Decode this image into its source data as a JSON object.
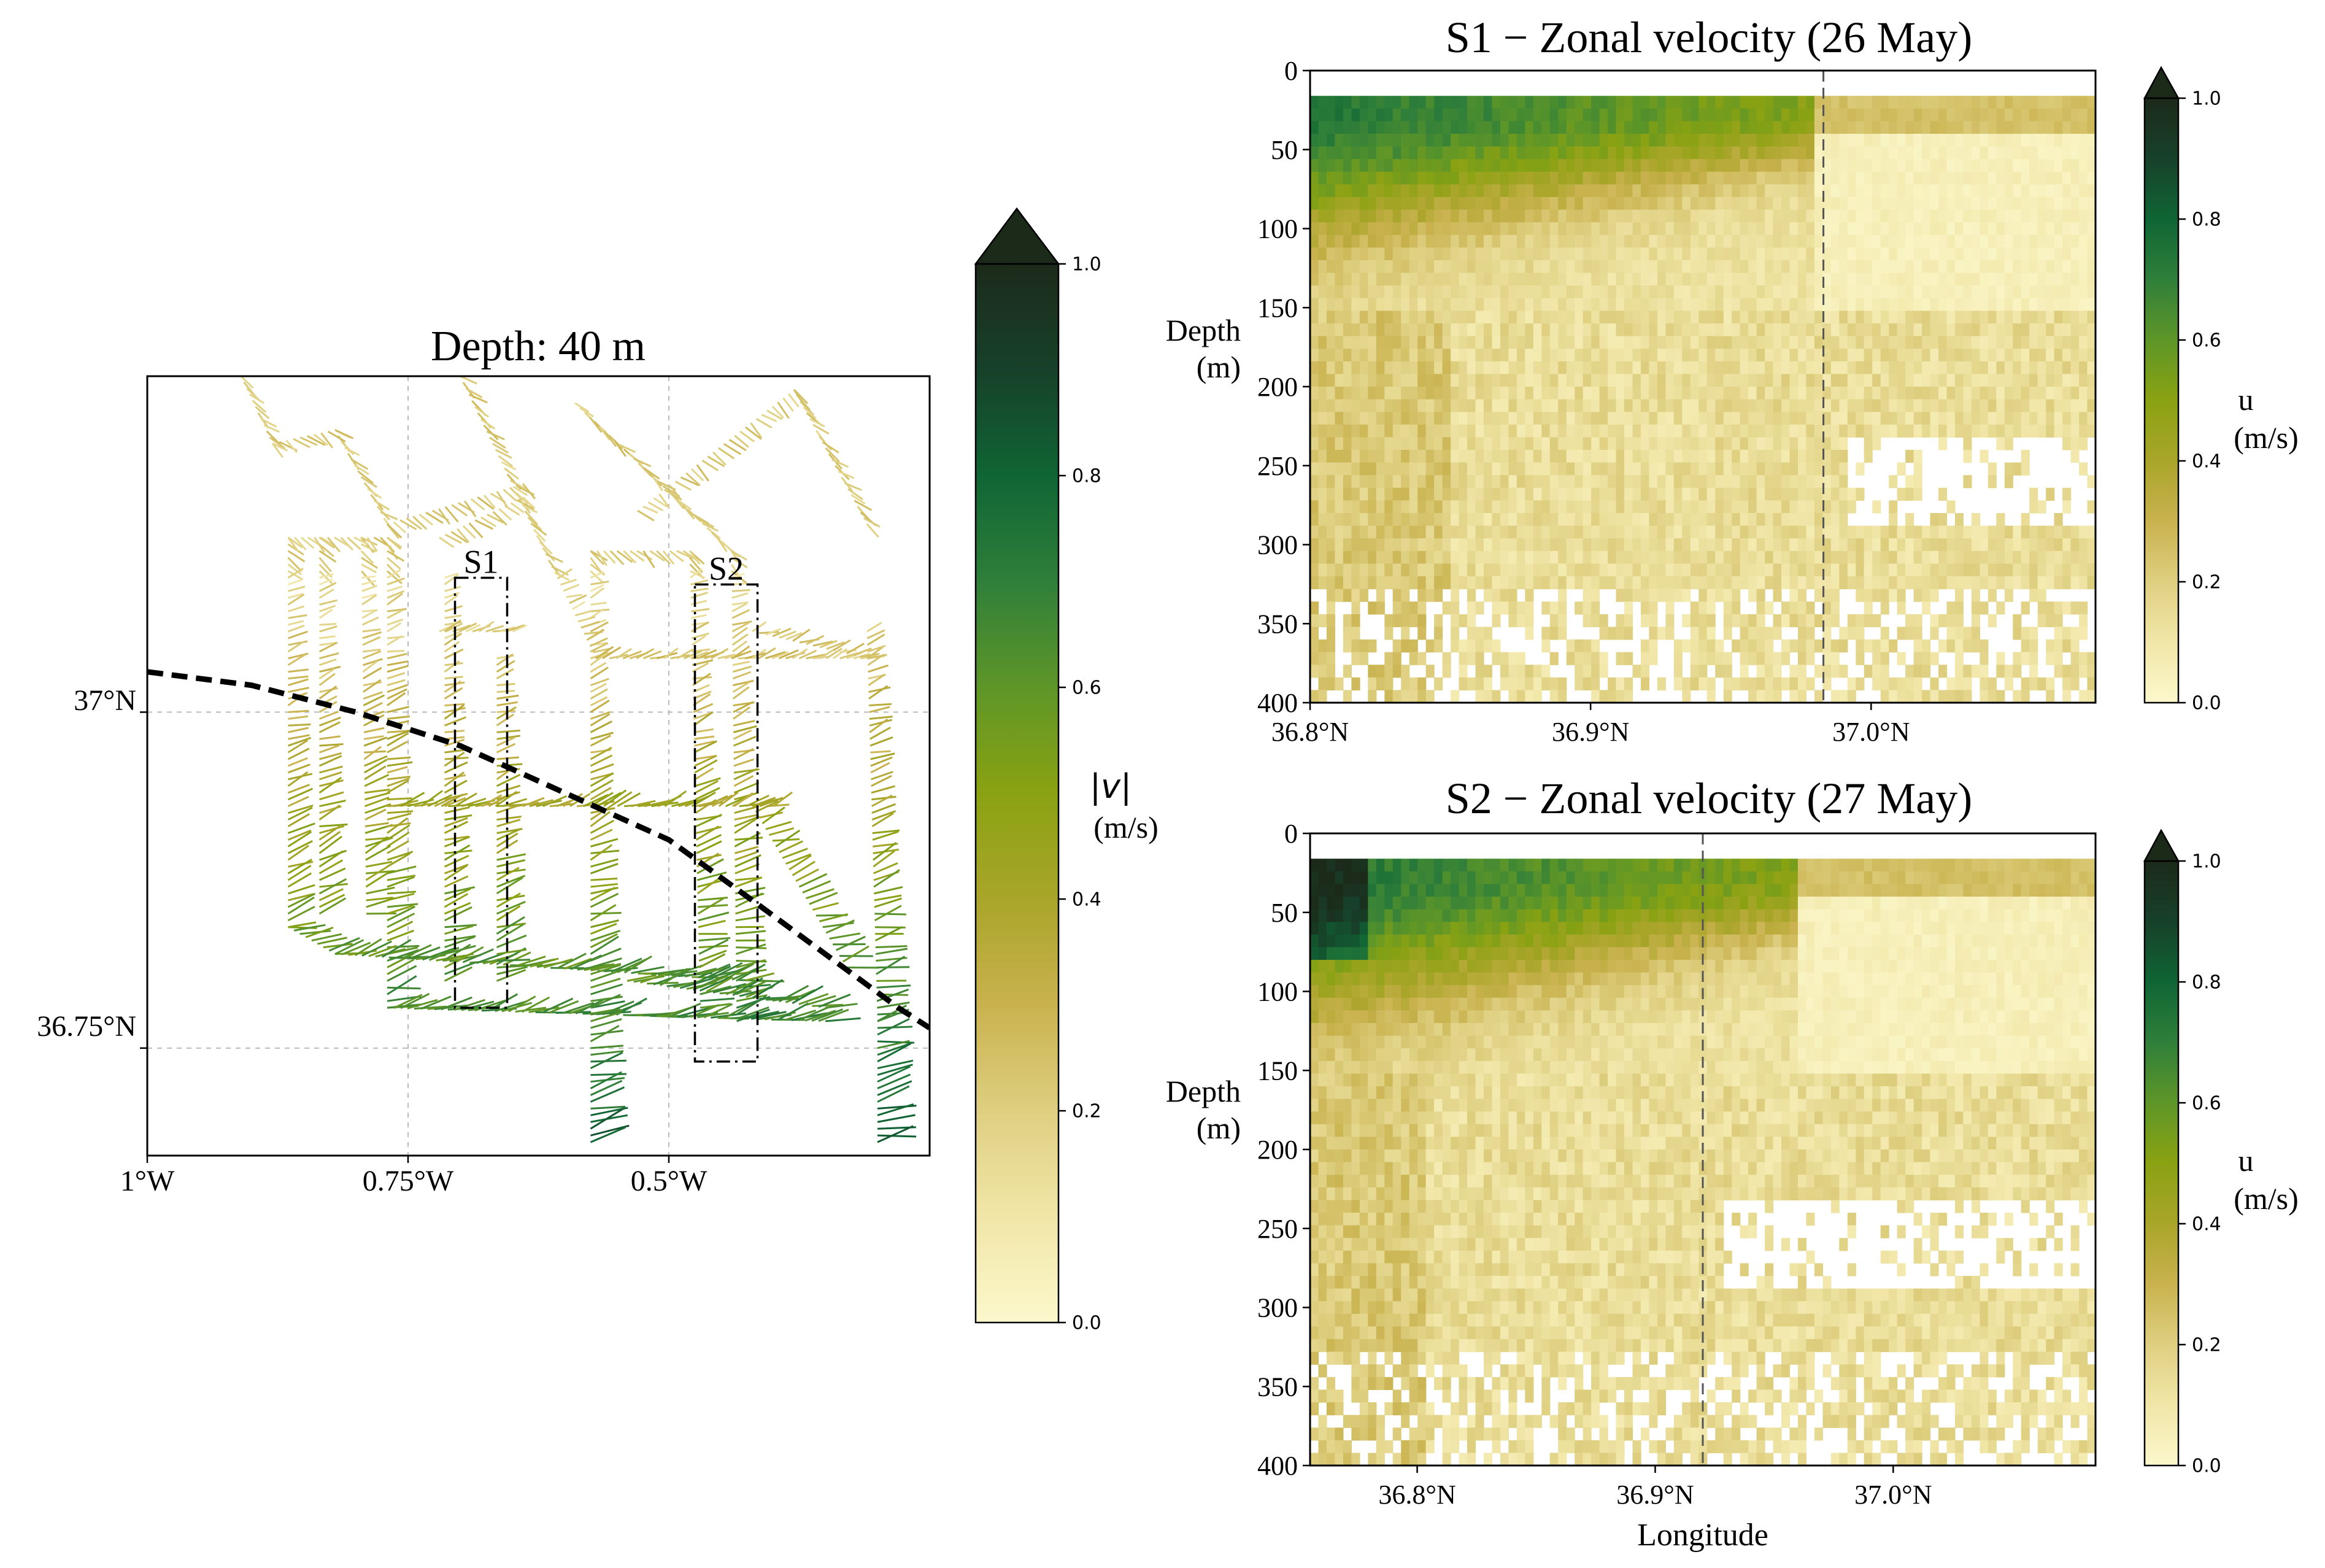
{
  "colors": {
    "cmap": [
      "#fcf8cc",
      "#f1e6a8",
      "#decf80",
      "#c9b24e",
      "#a9a52a",
      "#8aa212",
      "#5e9628",
      "#2f7f3a",
      "#0f6534",
      "#17412a",
      "#1c2a1a"
    ],
    "section_box": "#000000",
    "front_line": "#000000"
  },
  "charts": [
    {
      "id": "map",
      "type": "vector-map",
      "title": "Depth: 40 m",
      "x_ticks": [
        "1°W",
        "0.75°W",
        "0.5°W"
      ],
      "x_tick_values": [
        -1.0,
        -0.75,
        -0.5
      ],
      "y_ticks": [
        "37°N",
        "36.75°N"
      ],
      "y_tick_values": [
        37.0,
        36.75
      ],
      "xlim": [
        -1.0,
        -0.25
      ],
      "ylim": [
        36.67,
        37.25
      ],
      "grid": true,
      "boxes": [
        {
          "label": "S1",
          "lon": [
            -0.705,
            -0.655
          ],
          "lat": [
            36.78,
            37.1
          ]
        },
        {
          "label": "S2",
          "lon": [
            -0.475,
            -0.415
          ],
          "lat": [
            36.74,
            37.095
          ]
        }
      ],
      "front_line": {
        "lon": [
          -1.0,
          -0.9,
          -0.8,
          -0.7,
          -0.6,
          -0.5,
          -0.42,
          -0.35,
          -0.28,
          -0.25
        ],
        "lat": [
          37.03,
          37.02,
          37.0,
          36.975,
          36.94,
          36.905,
          36.86,
          36.82,
          36.78,
          36.765
        ]
      },
      "colorbar": {
        "label_math": "|v|",
        "label_unit": "(m/s)",
        "ticks": [
          "0.0",
          "0.2",
          "0.4",
          "0.6",
          "0.8",
          "1.0"
        ],
        "range": [
          0,
          1
        ],
        "extend": "max"
      }
    },
    {
      "id": "s1",
      "type": "heatmap",
      "title": "S1 − Zonal velocity (26 May)",
      "x_ticks": [
        "36.8°N",
        "36.9°N",
        "37.0°N"
      ],
      "x_tick_values": [
        36.8,
        36.9,
        37.0
      ],
      "xlim": [
        36.8,
        37.08
      ],
      "ylim": [
        400,
        0
      ],
      "y_ticks": [
        "0",
        "50",
        "100",
        "150",
        "200",
        "250",
        "300",
        "350",
        "400"
      ],
      "ylabel": "Depth",
      "ylabel_unit": "(m)",
      "xlabel": "",
      "dashed_line_x": 36.983,
      "surface_gap_depth": 16,
      "jet_lat_end": 36.97,
      "jet_depth": 80,
      "colorbar": {
        "label": "u",
        "label_unit": "(m/s)",
        "ticks": [
          "0.0",
          "0.2",
          "0.4",
          "0.6",
          "0.8",
          "1.0"
        ],
        "range": [
          0,
          1
        ],
        "extend": "max"
      }
    },
    {
      "id": "s2",
      "type": "heatmap",
      "title": "S2 − Zonal velocity (27 May)",
      "x_ticks": [
        "36.8°N",
        "36.9°N",
        "37.0°N"
      ],
      "x_tick_values": [
        36.8,
        36.9,
        37.0
      ],
      "xlim": [
        36.755,
        37.085
      ],
      "ylim": [
        400,
        0
      ],
      "y_ticks": [
        "0",
        "50",
        "100",
        "150",
        "200",
        "250",
        "300",
        "350",
        "400"
      ],
      "ylabel": "Depth",
      "ylabel_unit": "(m)",
      "xlabel": "Longitude",
      "dashed_line_x": 36.92,
      "surface_gap_depth": 16,
      "jet_lat_end": 36.95,
      "jet_depth": 90,
      "colorbar": {
        "label": "u",
        "label_unit": "(m/s)",
        "ticks": [
          "0.0",
          "0.2",
          "0.4",
          "0.6",
          "0.8",
          "1.0"
        ],
        "range": [
          0,
          1
        ],
        "extend": "max"
      }
    }
  ]
}
